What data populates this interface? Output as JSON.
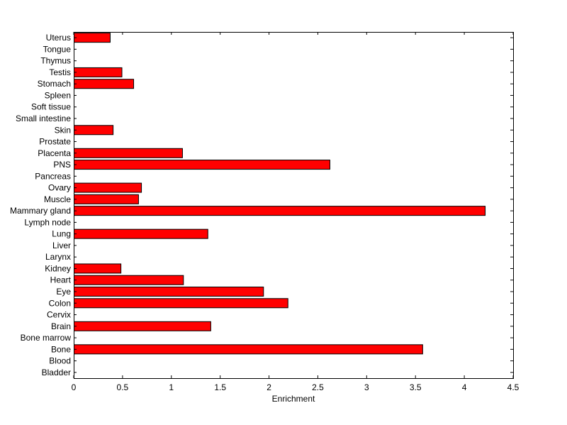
{
  "chart_data": {
    "type": "bar",
    "orientation": "horizontal",
    "title": "",
    "xlabel": "Enrichment",
    "ylabel": "",
    "xlim": [
      0,
      4.5
    ],
    "xticks": [
      "0",
      "0.5",
      "1",
      "1.5",
      "2",
      "2.5",
      "3",
      "3.5",
      "4",
      "4.5"
    ],
    "grid": false,
    "bar_color": "#ff0000",
    "categories": [
      "Bladder",
      "Blood",
      "Bone",
      "Bone marrow",
      "Brain",
      "Cervix",
      "Colon",
      "Eye",
      "Heart",
      "Kidney",
      "Larynx",
      "Liver",
      "Lung",
      "Lymph node",
      "Mammary gland",
      "Muscle",
      "Ovary",
      "Pancreas",
      "PNS",
      "Placenta",
      "Prostate",
      "Skin",
      "Small intestine",
      "Soft tissue",
      "Spleen",
      "Stomach",
      "Testis",
      "Thymus",
      "Tongue",
      "Uterus"
    ],
    "values": [
      0,
      0,
      3.57,
      0,
      1.4,
      0,
      2.19,
      1.94,
      1.12,
      0.48,
      0,
      0,
      1.37,
      0,
      4.21,
      0.66,
      0.69,
      0,
      2.62,
      1.11,
      0,
      0.4,
      0,
      0,
      0,
      0.61,
      0.49,
      0,
      0,
      0.37
    ]
  }
}
